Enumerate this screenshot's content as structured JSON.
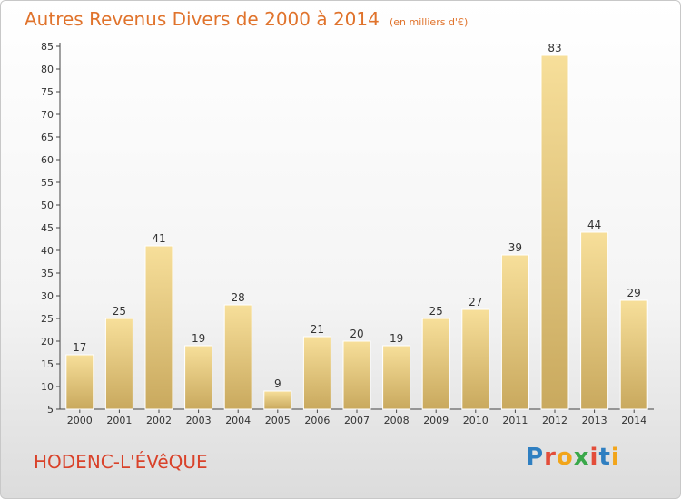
{
  "chart_data": {
    "type": "bar",
    "title": "Autres Revenus Divers de 2000 à 2014",
    "subtitle": "(en milliers d'€)",
    "categories": [
      "2000",
      "2001",
      "2002",
      "2003",
      "2004",
      "2005",
      "2006",
      "2007",
      "2008",
      "2009",
      "2010",
      "2011",
      "2012",
      "2013",
      "2014"
    ],
    "values": [
      17,
      25,
      41,
      19,
      28,
      9,
      21,
      20,
      19,
      25,
      27,
      39,
      83,
      44,
      29
    ],
    "ylim": [
      5,
      85
    ],
    "yticks": [
      5,
      10,
      15,
      20,
      25,
      30,
      35,
      40,
      45,
      50,
      55,
      60,
      65,
      70,
      75,
      80,
      85
    ],
    "grid": false,
    "bar_color_light": "#f7df9a",
    "bar_color_dark": "#c9a95e"
  },
  "footer": {
    "town_name": "HODENC-L'ÉVêQUE",
    "brand": {
      "letters": [
        "P",
        "r",
        "o",
        "x",
        "i",
        "t",
        "i"
      ],
      "colors": [
        "#2f7fc1",
        "#e34d3a",
        "#f2a51a",
        "#3aa84a",
        "#e34d3a",
        "#2f7fc1",
        "#f2a51a"
      ]
    }
  }
}
